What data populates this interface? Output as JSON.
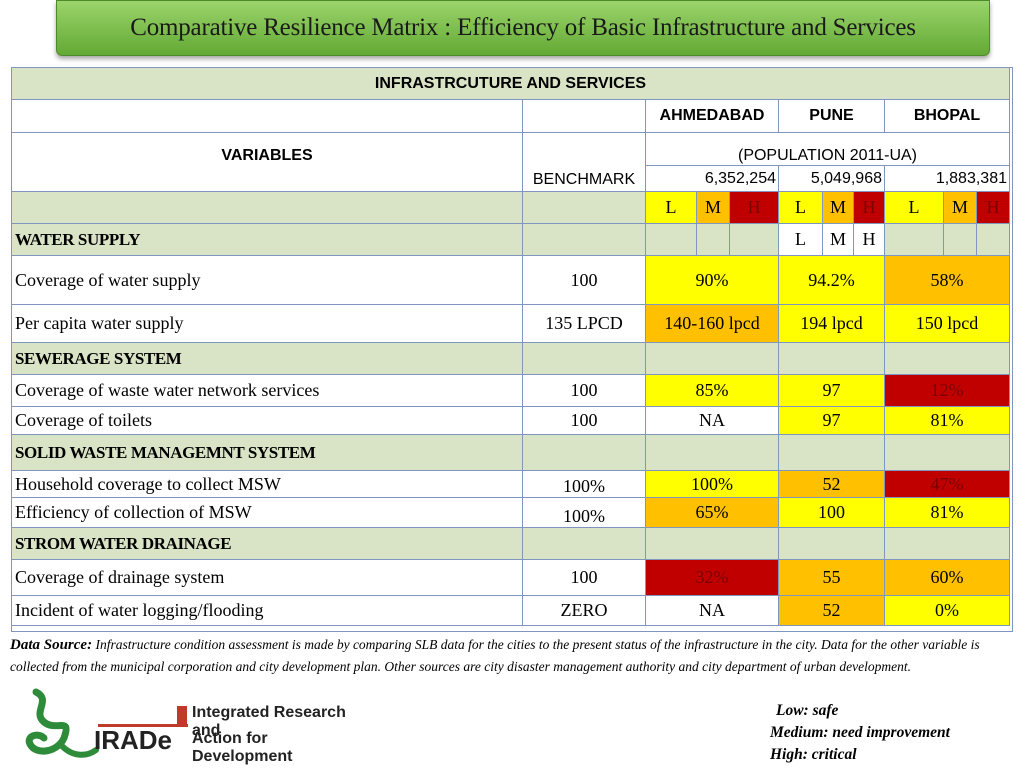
{
  "title": "Comparative Resilience Matrix : Efficiency  of  Basic Infrastructure  and Services",
  "table": {
    "main_header": "INFRASTRCUTURE AND SERVICES",
    "cities": [
      "AHMEDABAD",
      "PUNE",
      "BHOPAL"
    ],
    "variables_label": "VARIABLES",
    "benchmark_label": "BENCHMARK",
    "population_label": "(POPULATION 2011-UA)",
    "populations": [
      "6,352,254",
      "5,049,968",
      "1,883,381"
    ],
    "scale": [
      "L",
      "M",
      "H"
    ],
    "sections": {
      "water": "WATER SUPPLY",
      "sewerage": "SEWERAGE SYSTEM",
      "solid_waste": "SOLID WASTE MANAGEMNT SYSTEM",
      "storm": "STROM WATER DRAINAGE"
    },
    "rows": {
      "water_coverage": {
        "label": "Coverage of water supply",
        "benchmark": "100",
        "values": [
          "90%",
          "94.2%",
          "58%"
        ]
      },
      "per_capita": {
        "label": "Per capita water supply",
        "benchmark": "135 LPCD",
        "values": [
          "140-160 lpcd",
          "194 lpcd",
          "150 lpcd"
        ]
      },
      "wastewater": {
        "label": "Coverage of waste water network services",
        "benchmark": "100",
        "values": [
          "85%",
          "97",
          "12%"
        ]
      },
      "toilets": {
        "label": "Coverage of toilets",
        "benchmark": "100",
        "values": [
          "NA",
          "97",
          "81%"
        ]
      },
      "msw_coverage": {
        "label": "Household coverage to collect MSW",
        "benchmark": "100%",
        "values": [
          "100%",
          "52",
          "47%"
        ]
      },
      "msw_efficiency": {
        "label": "Efficiency of collection of MSW",
        "benchmark": "100%",
        "values": [
          "65%",
          "100",
          "81%"
        ]
      },
      "drainage": {
        "label": "Coverage of drainage system",
        "benchmark": "100",
        "values": [
          "32%",
          "55",
          "60%"
        ]
      },
      "flooding": {
        "label": "Incident of water logging/flooding",
        "benchmark": "ZERO",
        "values": [
          "NA",
          "52",
          "0%"
        ]
      }
    }
  },
  "colors": {
    "low": "#ffff00",
    "medium": "#ffc000",
    "high": "#c00000",
    "section_bg": "#d9e3c6",
    "title_bg": "#7cc04a"
  },
  "source": {
    "label": "Data Source:",
    "text": "Infrastructure condition assessment is made by comparing SLB data for the cities to the present status of the infrastructure in the city. Data for the other variable is collected from the municipal corporation and city development plan. Other sources are city disaster management authority and city department of urban development."
  },
  "legend": [
    "Low: safe",
    "Medium: need improvement",
    "High: critical"
  ],
  "logo": {
    "line1": "Integrated Research and",
    "line2_brand": "IRADe",
    "line2_rest": "Action for Development"
  }
}
